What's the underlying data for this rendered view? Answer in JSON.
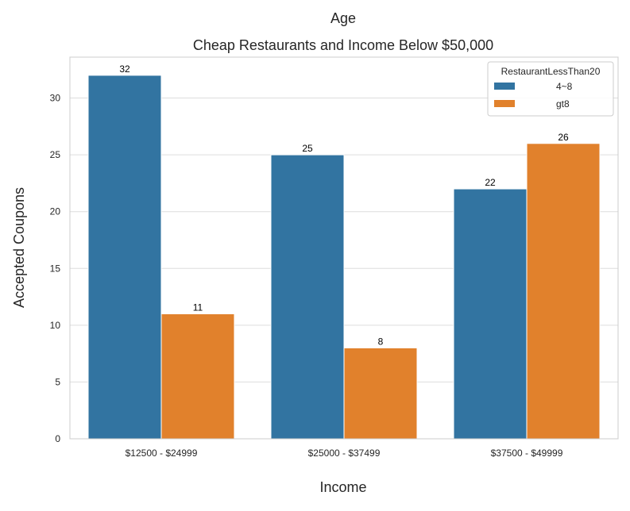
{
  "chart_data": {
    "type": "bar",
    "suptitle": "Age",
    "title": "Cheap Restaurants and Income Below $50,000",
    "xlabel": "Income",
    "ylabel": "Accepted Coupons",
    "categories": [
      "$12500 - $24999",
      "$25000 - $37499",
      "$37500 - $49999"
    ],
    "series": [
      {
        "name": "4~8",
        "values": [
          32,
          25,
          22
        ],
        "color": "#3274a1"
      },
      {
        "name": "gt8",
        "values": [
          11,
          8,
          26
        ],
        "color": "#e1812c"
      }
    ],
    "ylim": [
      0,
      33.6
    ],
    "yticks": [
      0,
      5,
      10,
      15,
      20,
      25,
      30
    ],
    "grid": true,
    "legend": {
      "title": "RestaurantLessThan20",
      "placement": "top-right"
    }
  }
}
